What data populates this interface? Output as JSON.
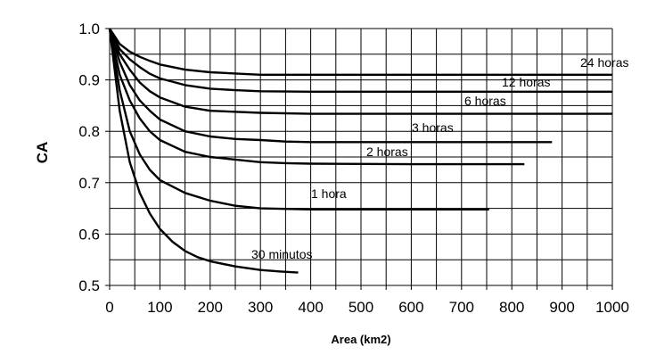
{
  "chart_data": {
    "type": "line",
    "xlabel": "Area (km2)",
    "ylabel": "CA",
    "xlim": [
      0,
      1000
    ],
    "ylim": [
      0.5,
      1.0
    ],
    "xticks": [
      "0",
      "100",
      "200",
      "300",
      "400",
      "500",
      "600",
      "700",
      "800",
      "900",
      "1000"
    ],
    "yticks": [
      "0.5",
      "0.6",
      "0.7",
      "0.8",
      "0.9",
      "1.0"
    ],
    "grid": true,
    "series": [
      {
        "name": "24 horas",
        "x": [
          0,
          20,
          40,
          60,
          80,
          100,
          150,
          200,
          300,
          400,
          600,
          800,
          1000
        ],
        "y": [
          1.0,
          0.97,
          0.955,
          0.945,
          0.937,
          0.93,
          0.92,
          0.915,
          0.91,
          0.91,
          0.91,
          0.91,
          0.91
        ]
      },
      {
        "name": "12 horas",
        "x": [
          0,
          20,
          40,
          60,
          80,
          100,
          150,
          200,
          250,
          300,
          400,
          600,
          800,
          1000
        ],
        "y": [
          1.0,
          0.96,
          0.94,
          0.925,
          0.912,
          0.903,
          0.89,
          0.883,
          0.88,
          0.878,
          0.877,
          0.877,
          0.877,
          0.877
        ]
      },
      {
        "name": "6 horas",
        "x": [
          0,
          20,
          40,
          60,
          80,
          100,
          150,
          200,
          300,
          400,
          600,
          800,
          1000
        ],
        "y": [
          1.0,
          0.95,
          0.92,
          0.895,
          0.878,
          0.866,
          0.848,
          0.84,
          0.836,
          0.834,
          0.834,
          0.834,
          0.834
        ]
      },
      {
        "name": "3 horas",
        "x": [
          0,
          20,
          40,
          60,
          80,
          100,
          150,
          200,
          250,
          300,
          350,
          400,
          600,
          880
        ],
        "y": [
          1.0,
          0.935,
          0.89,
          0.86,
          0.84,
          0.823,
          0.8,
          0.79,
          0.785,
          0.783,
          0.78,
          0.779,
          0.779,
          0.779
        ]
      },
      {
        "name": "2 horas",
        "x": [
          0,
          20,
          40,
          60,
          80,
          100,
          150,
          200,
          250,
          300,
          350,
          400,
          600,
          825
        ],
        "y": [
          1.0,
          0.91,
          0.86,
          0.825,
          0.8,
          0.783,
          0.76,
          0.75,
          0.745,
          0.74,
          0.738,
          0.737,
          0.736,
          0.736
        ]
      },
      {
        "name": "1 hora",
        "x": [
          0,
          20,
          40,
          60,
          80,
          100,
          150,
          200,
          250,
          300,
          400,
          600,
          755
        ],
        "y": [
          1.0,
          0.88,
          0.8,
          0.755,
          0.725,
          0.705,
          0.68,
          0.665,
          0.655,
          0.65,
          0.648,
          0.648,
          0.648
        ]
      },
      {
        "name": "30 minutos",
        "x": [
          0,
          20,
          40,
          60,
          80,
          100,
          125,
          150,
          175,
          200,
          250,
          300,
          340,
          375
        ],
        "y": [
          1.0,
          0.84,
          0.74,
          0.68,
          0.64,
          0.61,
          0.585,
          0.567,
          0.555,
          0.547,
          0.537,
          0.53,
          0.527,
          0.525
        ]
      }
    ]
  }
}
